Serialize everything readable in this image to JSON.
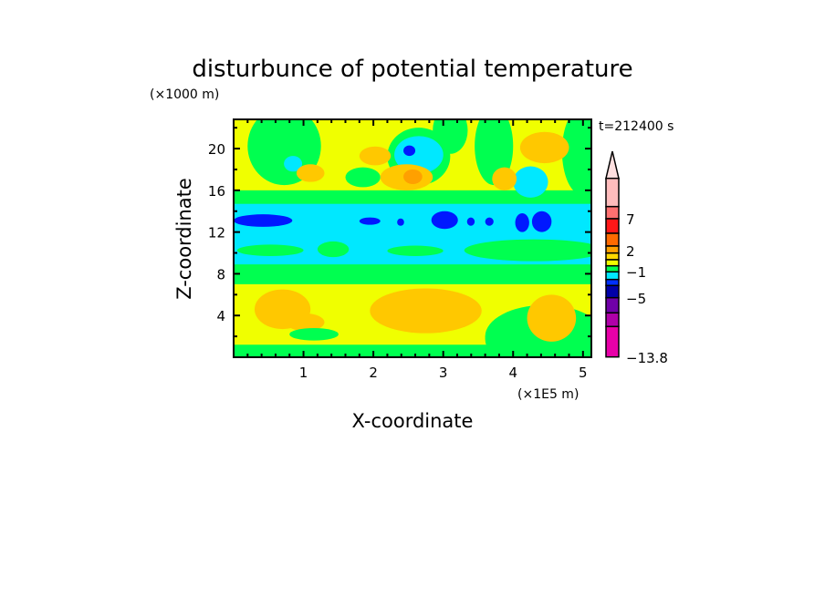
{
  "chart_data": {
    "type": "heatmap",
    "title": "disturbunce of potential temperature",
    "ylabel": "Z-coordinate",
    "xlabel": "X-coordinate",
    "y_unit": "(×1000 m)",
    "x_unit": "(×1E5 m)",
    "time_label": "t=212400 s",
    "xlim": [
      0,
      5.12
    ],
    "ylim": [
      0,
      22.8
    ],
    "x_ticks": [
      "1",
      "2",
      "3",
      "4",
      "5"
    ],
    "x_tick_values": [
      1,
      2,
      3,
      4,
      5
    ],
    "y_ticks": [
      "4",
      "8",
      "12",
      "16",
      "20"
    ],
    "y_tick_values": [
      4,
      8,
      12,
      16,
      20
    ],
    "colorbar": {
      "labels": [
        "7",
        "2",
        "−1",
        "−5",
        "−13.8"
      ],
      "label_values": [
        7,
        2,
        -1,
        -5,
        -13.8
      ],
      "colors_top_to_bottom": [
        "#ffbcbc",
        "#ff7070",
        "#ff1818",
        "#ff6a00",
        "#ffa000",
        "#ffd800",
        "#f0ff00",
        "#00ff50",
        "#00e8ff",
        "#0030ff",
        "#0000a8",
        "#7000a8",
        "#b000a8",
        "#e800a8"
      ],
      "extend_color": "#ffe0e0"
    },
    "background_color": "#f0ff00",
    "regions": [
      {
        "shape": "rect",
        "color": "#00ff50",
        "x": [
          0,
          5.12
        ],
        "z": [
          0,
          1.2
        ]
      },
      {
        "shape": "ellipse",
        "color": "#00ff50",
        "x": [
          3.6,
          5.3
        ],
        "z": [
          -1,
          5
        ]
      },
      {
        "shape": "rect",
        "color": "#00ff50",
        "x": [
          0,
          5.12
        ],
        "z": [
          7,
          16
        ]
      },
      {
        "shape": "rect",
        "color": "#00e8ff",
        "x": [
          0,
          5.12
        ],
        "z": [
          8.9,
          14.7
        ]
      },
      {
        "shape": "ellipse",
        "color": "#00ff50",
        "x": [
          0.05,
          1.0
        ],
        "z": [
          9.7,
          10.8
        ]
      },
      {
        "shape": "ellipse",
        "color": "#00ff50",
        "x": [
          1.2,
          1.65
        ],
        "z": [
          9.6,
          11.1
        ]
      },
      {
        "shape": "ellipse",
        "color": "#00ff50",
        "x": [
          2.2,
          3.0
        ],
        "z": [
          9.7,
          10.7
        ]
      },
      {
        "shape": "ellipse",
        "color": "#00ff50",
        "x": [
          3.3,
          5.3
        ],
        "z": [
          9.2,
          11.3
        ]
      },
      {
        "shape": "ellipse",
        "color": "#0018ff",
        "x": [
          0.0,
          0.84
        ],
        "z": [
          12.5,
          13.7
        ]
      },
      {
        "shape": "ellipse",
        "color": "#0018ff",
        "x": [
          1.8,
          2.1
        ],
        "z": [
          12.7,
          13.4
        ]
      },
      {
        "shape": "ellipse",
        "color": "#0018ff",
        "x": [
          2.34,
          2.44
        ],
        "z": [
          12.6,
          13.3
        ]
      },
      {
        "shape": "ellipse",
        "color": "#0018ff",
        "x": [
          2.83,
          3.21
        ],
        "z": [
          12.3,
          14.0
        ]
      },
      {
        "shape": "ellipse",
        "color": "#0018ff",
        "x": [
          3.34,
          3.45
        ],
        "z": [
          12.6,
          13.4
        ]
      },
      {
        "shape": "ellipse",
        "color": "#0018ff",
        "x": [
          3.6,
          3.72
        ],
        "z": [
          12.6,
          13.4
        ]
      },
      {
        "shape": "ellipse",
        "color": "#0018ff",
        "x": [
          4.03,
          4.23
        ],
        "z": [
          12.0,
          13.8
        ]
      },
      {
        "shape": "ellipse",
        "color": "#0018ff",
        "x": [
          4.27,
          4.55
        ],
        "z": [
          12.0,
          14.0
        ]
      },
      {
        "shape": "ellipse",
        "color": "#00ff50",
        "x": [
          0.2,
          1.25
        ],
        "z": [
          16.5,
          24
        ]
      },
      {
        "shape": "ellipse",
        "color": "#00ff50",
        "x": [
          1.6,
          2.1
        ],
        "z": [
          16.3,
          18.2
        ]
      },
      {
        "shape": "ellipse",
        "color": "#00ff50",
        "x": [
          2.85,
          3.35
        ],
        "z": [
          19.5,
          24
        ]
      },
      {
        "shape": "ellipse",
        "color": "#00ff50",
        "x": [
          3.45,
          4.0
        ],
        "z": [
          16.5,
          24
        ]
      },
      {
        "shape": "ellipse",
        "color": "#00ff50",
        "x": [
          4.7,
          5.3
        ],
        "z": [
          15.5,
          24
        ]
      },
      {
        "shape": "ellipse",
        "color": "#00ff50",
        "x": [
          2.2,
          3.1
        ],
        "z": [
          16.5,
          22
        ]
      },
      {
        "shape": "ellipse",
        "color": "#00e8ff",
        "x": [
          2.3,
          3.0
        ],
        "z": [
          17.6,
          21.2
        ]
      },
      {
        "shape": "ellipse",
        "color": "#0018ff",
        "x": [
          2.43,
          2.6
        ],
        "z": [
          19.3,
          20.3
        ]
      },
      {
        "shape": "ellipse",
        "color": "#00e8ff",
        "x": [
          0.72,
          0.98
        ],
        "z": [
          17.8,
          19.3
        ]
      },
      {
        "shape": "ellipse",
        "color": "#00e8ff",
        "x": [
          4.0,
          4.5
        ],
        "z": [
          15.3,
          18.3
        ]
      },
      {
        "shape": "ellipse",
        "color": "#ffc800",
        "x": [
          0.9,
          1.3
        ],
        "z": [
          16.8,
          18.5
        ]
      },
      {
        "shape": "ellipse",
        "color": "#ffc800",
        "x": [
          1.8,
          2.25
        ],
        "z": [
          18.4,
          20.2
        ]
      },
      {
        "shape": "ellipse",
        "color": "#ffc800",
        "x": [
          2.1,
          2.85
        ],
        "z": [
          16.0,
          18.5
        ]
      },
      {
        "shape": "ellipse",
        "color": "#ffa000",
        "x": [
          2.43,
          2.7
        ],
        "z": [
          16.6,
          18.0
        ]
      },
      {
        "shape": "ellipse",
        "color": "#ffc800",
        "x": [
          4.1,
          4.8
        ],
        "z": [
          18.6,
          21.6
        ]
      },
      {
        "shape": "ellipse",
        "color": "#ffc800",
        "x": [
          3.7,
          4.05
        ],
        "z": [
          16.0,
          18.2
        ]
      },
      {
        "shape": "ellipse",
        "color": "#ffc800",
        "x": [
          0.3,
          1.1
        ],
        "z": [
          2.7,
          6.5
        ]
      },
      {
        "shape": "ellipse",
        "color": "#ffc800",
        "x": [
          0.75,
          1.3
        ],
        "z": [
          2.5,
          4.2
        ]
      },
      {
        "shape": "ellipse",
        "color": "#ffc800",
        "x": [
          1.95,
          3.55
        ],
        "z": [
          2.3,
          6.6
        ]
      },
      {
        "shape": "ellipse",
        "color": "#ffc800",
        "x": [
          4.2,
          4.9
        ],
        "z": [
          1.5,
          6.0
        ]
      },
      {
        "shape": "ellipse",
        "color": "#00ff50",
        "x": [
          0.8,
          1.5
        ],
        "z": [
          1.6,
          2.8
        ]
      },
      {
        "shape": "ellipse",
        "color": "#00ff50",
        "x": [
          3.6,
          4.1
        ],
        "z": [
          0,
          3.5
        ]
      }
    ]
  }
}
